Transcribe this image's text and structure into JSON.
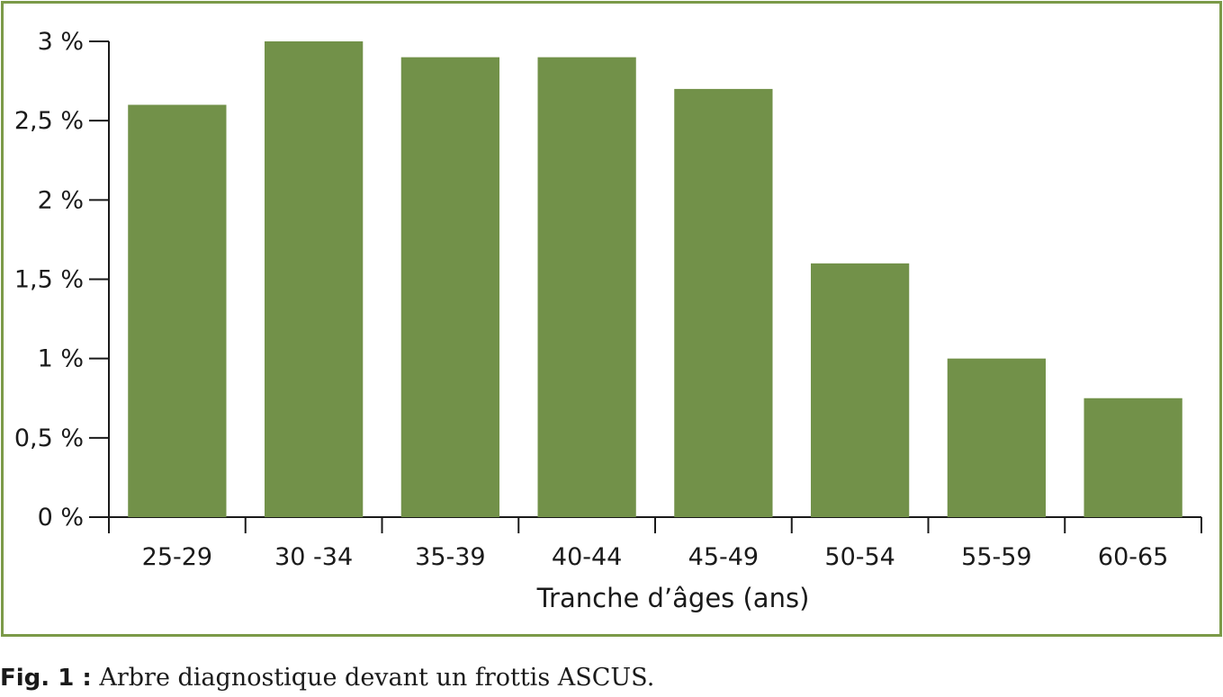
{
  "chart_data": {
    "type": "bar",
    "categories": [
      "25-29",
      "30 -34",
      "35-39",
      "40-44",
      "45-49",
      "50-54",
      "55-59",
      "60-65"
    ],
    "values": [
      2.6,
      3.0,
      2.9,
      2.9,
      2.7,
      1.6,
      1.0,
      0.75
    ],
    "y_ticks": [
      0,
      0.5,
      1,
      1.5,
      2,
      2.5,
      3
    ],
    "y_tick_labels": [
      "0 %",
      "0,5 %",
      "1 %",
      "1,5 %",
      "2 %",
      "2,5 %",
      "3 %"
    ],
    "ylim": [
      0,
      3
    ],
    "xlabel": "Tranche d’âges (ans)",
    "ylabel": "",
    "title": "",
    "grid": false,
    "legend": "none",
    "bar_color": "#729149",
    "axis_color": "#1a1a1a"
  },
  "caption": {
    "label": "Fig. 1 :",
    "text": "Arbre diagnostique devant un frottis ASCUS."
  },
  "frame_color": "#7b9a48"
}
